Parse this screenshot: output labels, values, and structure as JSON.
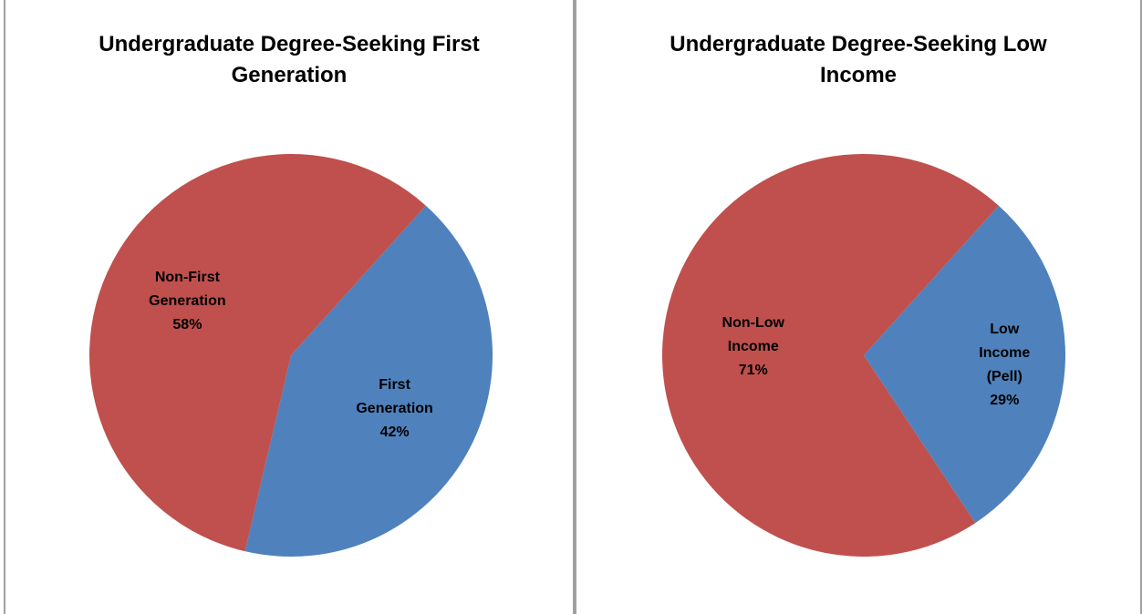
{
  "chart_data": [
    {
      "type": "pie",
      "title": "Undergraduate Degree-Seeking First Generation",
      "categories": [
        "First Generation",
        "Non-First Generation"
      ],
      "values": [
        42,
        58
      ],
      "value_labels": [
        "42%",
        "58%"
      ],
      "colors": [
        "#4f81bd",
        "#c0504d"
      ]
    },
    {
      "type": "pie",
      "title": "Undergraduate Degree-Seeking Low Income",
      "categories": [
        "Low Income (Pell)",
        "Non-Low Income"
      ],
      "values": [
        29,
        71
      ],
      "value_labels": [
        "29%",
        "71%"
      ],
      "colors": [
        "#4f81bd",
        "#c0504d"
      ]
    }
  ]
}
